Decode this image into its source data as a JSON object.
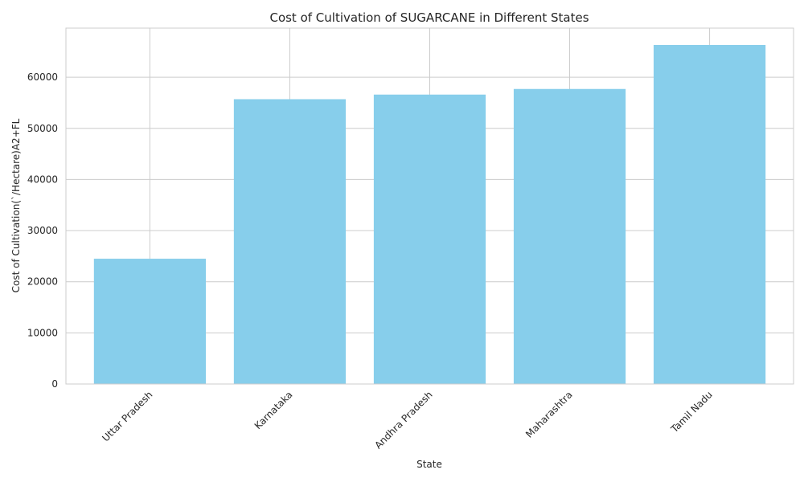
{
  "chart_data": {
    "type": "bar",
    "title": "Cost of Cultivation of SUGARCANE in Different States",
    "xlabel": "State",
    "ylabel": "Cost of Cultivation(`/Hectare)A2+FL",
    "categories": [
      "Uttar Pradesh",
      "Karnataka",
      "Andhra Pradesh",
      "Maharashtra",
      "Tamil Nadu"
    ],
    "values": [
      24500,
      55700,
      56600,
      57700,
      66300
    ],
    "ylim": [
      0,
      69600
    ],
    "yticks": [
      0,
      10000,
      20000,
      30000,
      40000,
      50000,
      60000
    ],
    "ytick_labels": [
      "0",
      "10000",
      "20000",
      "30000",
      "40000",
      "50000",
      "60000"
    ],
    "grid": true,
    "bar_color": "#87CEEB",
    "legend": "none"
  }
}
